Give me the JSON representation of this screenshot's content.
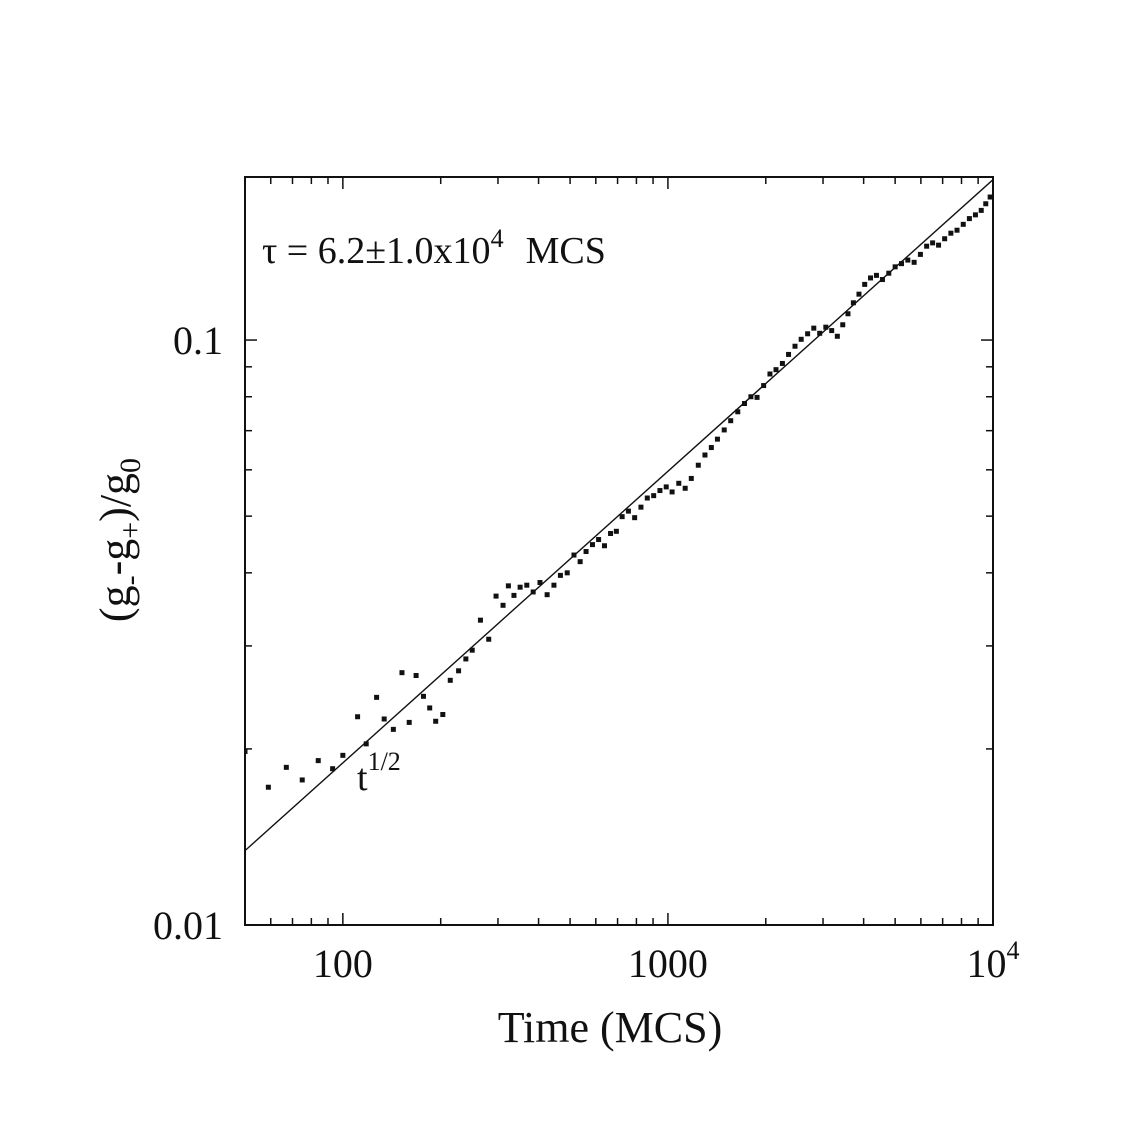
{
  "chart_data": {
    "type": "scatter",
    "title": "",
    "xlabel": "Time (MCS)",
    "ylabel": {
      "open": "(g",
      "sub_minus": "-",
      "mid": "-g",
      "sub_plus": "+",
      "close": ")/g",
      "sub_zero": "0"
    },
    "x_scale": "log",
    "y_scale": "log",
    "xlim": [
      50,
      10000
    ],
    "ylim": [
      0.01,
      0.19
    ],
    "x_ticks": [
      {
        "value": 100,
        "label": "100"
      },
      {
        "value": 1000,
        "label": "1000"
      },
      {
        "value": 10000,
        "label": "10",
        "sup": "4"
      }
    ],
    "y_ticks": [
      {
        "value": 0.01,
        "label": "0.01"
      },
      {
        "value": 0.1,
        "label": "0.1"
      }
    ],
    "grid": false,
    "annotation": {
      "text": "τ = 6.2±1.0x10",
      "sup": "4",
      "suffix": "MCS"
    },
    "fit_label": {
      "base": "t",
      "sup": "1/2"
    },
    "series": [
      {
        "kind": "line",
        "function": "power_law",
        "exponent": 0.5,
        "x": [
          50,
          10000
        ],
        "y": [
          0.0134,
          0.188
        ]
      },
      {
        "kind": "markers",
        "x": [
          50,
          59,
          67,
          75,
          84,
          93,
          100,
          111,
          118,
          127,
          134,
          143,
          152,
          160,
          168,
          177,
          185,
          193,
          203,
          214,
          227,
          239,
          250,
          265,
          281,
          296,
          311,
          323,
          336,
          351,
          368,
          385,
          404,
          425,
          446,
          467,
          490,
          514,
          537,
          560,
          586,
          612,
          638,
          666,
          694,
          723,
          756,
          790,
          826,
          864,
          904,
          945,
          988,
          1030,
          1080,
          1130,
          1180,
          1240,
          1300,
          1360,
          1420,
          1490,
          1560,
          1640,
          1720,
          1800,
          1880,
          1970,
          2060,
          2150,
          2250,
          2350,
          2460,
          2570,
          2690,
          2810,
          2930,
          3060,
          3190,
          3320,
          3450,
          3580,
          3720,
          3870,
          4030,
          4200,
          4380,
          4570,
          4780,
          5000,
          5230,
          5470,
          5720,
          5980,
          6250,
          6520,
          6800,
          7100,
          7420,
          7750,
          8100,
          8460,
          8830,
          9200,
          9500,
          9800
        ],
        "y": [
          0.0198,
          0.0172,
          0.0186,
          0.0177,
          0.0191,
          0.0185,
          0.0195,
          0.0227,
          0.0204,
          0.0245,
          0.0225,
          0.0216,
          0.027,
          0.0222,
          0.0267,
          0.0246,
          0.0235,
          0.0223,
          0.0229,
          0.0262,
          0.0272,
          0.0285,
          0.0295,
          0.0332,
          0.0308,
          0.0365,
          0.0352,
          0.038,
          0.0366,
          0.0378,
          0.0381,
          0.0371,
          0.0385,
          0.0367,
          0.0381,
          0.0396,
          0.04,
          0.0429,
          0.0418,
          0.0435,
          0.0447,
          0.0456,
          0.0445,
          0.0467,
          0.0471,
          0.0499,
          0.051,
          0.0497,
          0.0518,
          0.0537,
          0.0542,
          0.0553,
          0.0561,
          0.055,
          0.0569,
          0.0558,
          0.058,
          0.0611,
          0.0636,
          0.0655,
          0.0677,
          0.0702,
          0.0728,
          0.0754,
          0.0779,
          0.08,
          0.0798,
          0.0836,
          0.0875,
          0.089,
          0.0912,
          0.0945,
          0.0976,
          0.1003,
          0.1025,
          0.1048,
          0.1027,
          0.1052,
          0.1038,
          0.1015,
          0.1062,
          0.1109,
          0.1158,
          0.1198,
          0.1245,
          0.1277,
          0.129,
          0.1269,
          0.1301,
          0.1334,
          0.1351,
          0.137,
          0.1358,
          0.1401,
          0.1447,
          0.1466,
          0.1453,
          0.149,
          0.1523,
          0.1541,
          0.1577,
          0.1613,
          0.1637,
          0.1666,
          0.171,
          0.1756
        ]
      }
    ]
  }
}
